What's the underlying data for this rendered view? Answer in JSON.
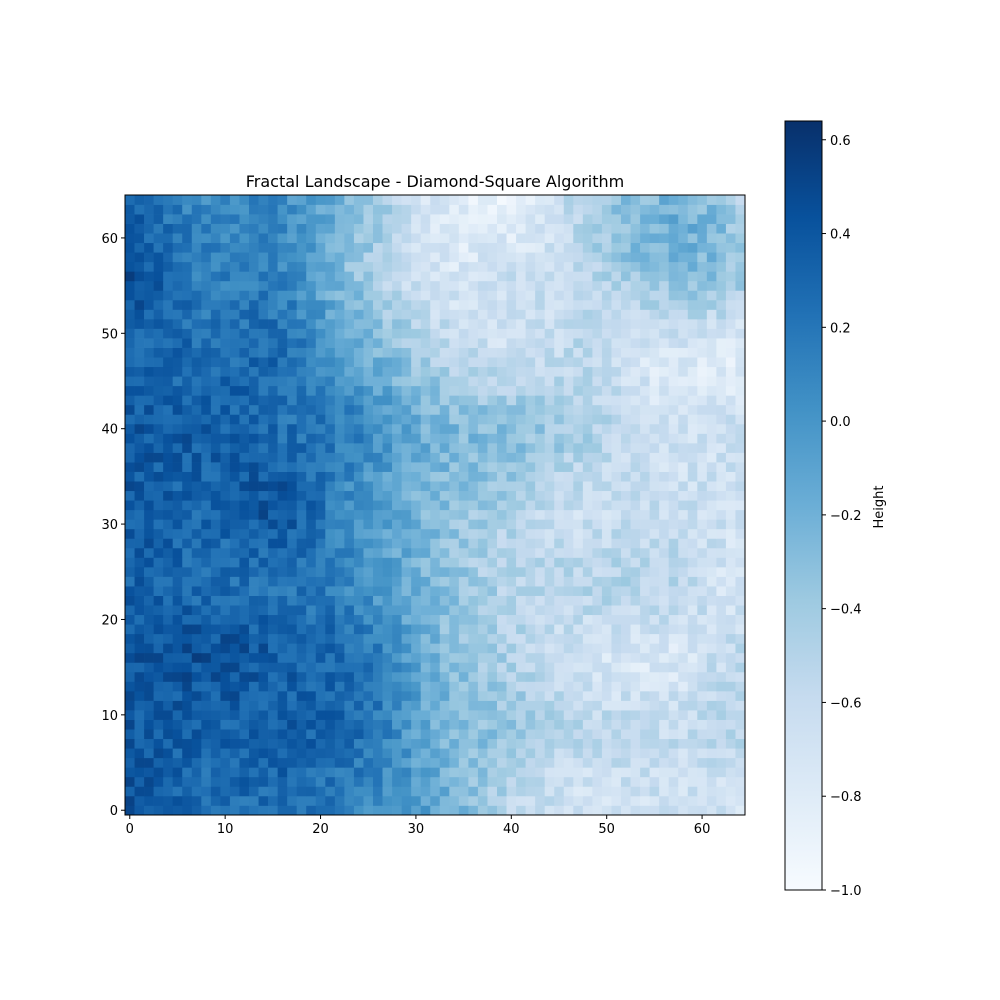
{
  "chart_data": {
    "type": "heatmap",
    "title": "Fractal Landscape - Diamond-Square Algorithm",
    "xlabel": "",
    "ylabel": "",
    "grid_size": 65,
    "x_range": [
      -0.5,
      64.5
    ],
    "y_range": [
      -0.5,
      64.5
    ],
    "origin": "lower",
    "x_ticks": [
      0,
      10,
      20,
      30,
      40,
      50,
      60
    ],
    "y_ticks": [
      0,
      10,
      20,
      30,
      40,
      50,
      60
    ],
    "x_tick_labels": [
      "0",
      "10",
      "20",
      "30",
      "40",
      "50",
      "60"
    ],
    "y_tick_labels": [
      "0",
      "10",
      "20",
      "30",
      "40",
      "50",
      "60"
    ],
    "grid": false,
    "colormap": "Blues",
    "colormap_stops": [
      "#f7fbff",
      "#deebf7",
      "#c6dbef",
      "#9ecae1",
      "#6baed6",
      "#4292c6",
      "#2171b5",
      "#08519c",
      "#08306b"
    ],
    "value_range": [
      -1.0,
      0.64
    ],
    "colorbar": {
      "label": "Height",
      "ticks": [
        0.6,
        0.4,
        0.2,
        0.0,
        -0.2,
        -0.4,
        -0.6,
        -0.8,
        -1.0
      ],
      "tick_labels": [
        "0.6",
        "0.4",
        "0.2",
        "0.0",
        "−0.2",
        "−0.4",
        "−0.6",
        "−0.8",
        "−1.0"
      ],
      "placement": "right"
    },
    "approx_features": [
      {
        "x": 6,
        "y": 18,
        "r": 12,
        "value": 0.45
      },
      {
        "x": 14,
        "y": 42,
        "r": 13,
        "value": 0.38
      },
      {
        "x": 4,
        "y": 32,
        "r": 10,
        "value": 0.35
      },
      {
        "x": 15,
        "y": 8,
        "r": 11,
        "value": 0.32
      },
      {
        "x": 38,
        "y": 37,
        "r": 5,
        "value": 0.05
      },
      {
        "x": 40,
        "y": 60,
        "r": 14,
        "value": -0.85
      },
      {
        "x": 63,
        "y": 48,
        "r": 7,
        "value": -0.8
      },
      {
        "x": 44,
        "y": 26,
        "r": 9,
        "value": -0.65
      },
      {
        "x": 62,
        "y": 8,
        "r": 8,
        "value": -0.65
      },
      {
        "x": 50,
        "y": 2,
        "r": 10,
        "value": -0.7
      },
      {
        "x": 58,
        "y": 60,
        "r": 7,
        "value": -0.1
      }
    ]
  }
}
